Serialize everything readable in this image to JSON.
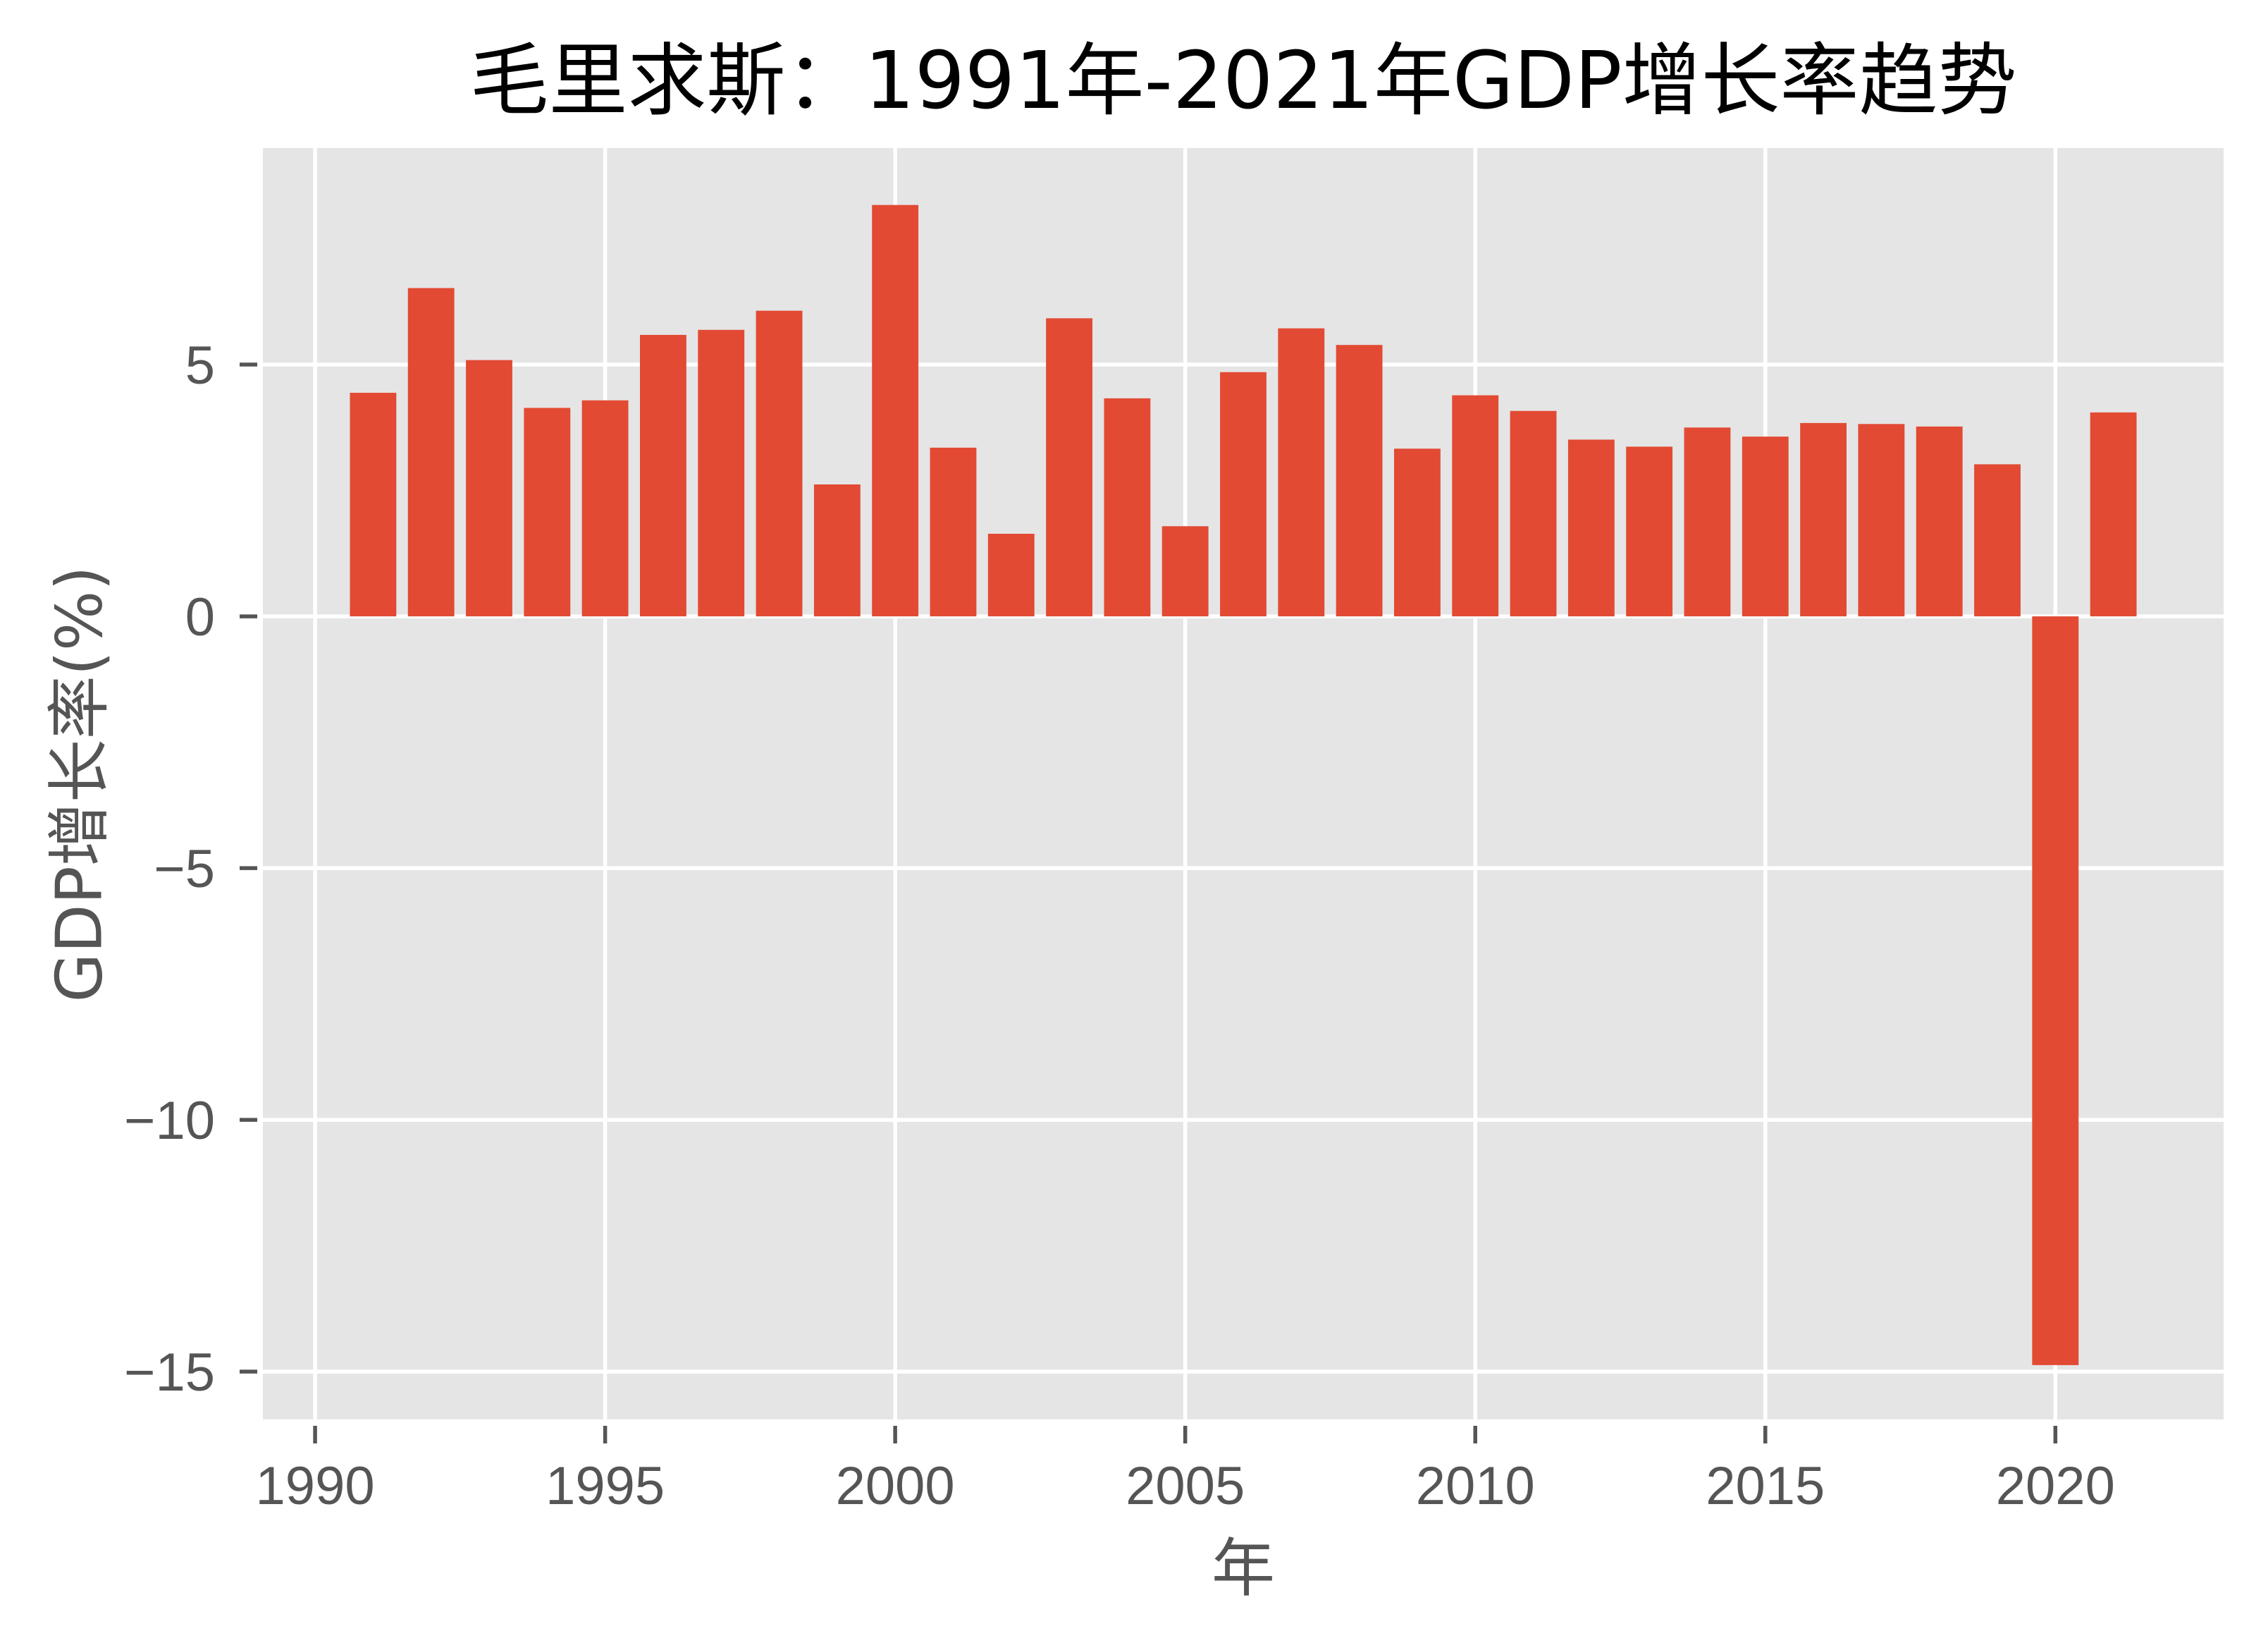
{
  "chart_data": {
    "type": "bar",
    "title": "毛里求斯：1991年-2021年GDP增长率趋势",
    "xlabel": "年",
    "ylabel": "GDP增长率(%)",
    "categories": [
      1991,
      1992,
      1993,
      1994,
      1995,
      1996,
      1997,
      1998,
      1999,
      2000,
      2001,
      2002,
      2003,
      2004,
      2005,
      2006,
      2007,
      2008,
      2009,
      2010,
      2011,
      2012,
      2013,
      2014,
      2015,
      2016,
      2017,
      2018,
      2019,
      2020,
      2021
    ],
    "values": [
      4.44,
      6.52,
      5.09,
      4.14,
      4.29,
      5.59,
      5.69,
      6.07,
      2.62,
      8.17,
      3.35,
      1.64,
      5.92,
      4.33,
      1.79,
      4.85,
      5.72,
      5.39,
      3.33,
      4.39,
      4.08,
      3.51,
      3.37,
      3.75,
      3.57,
      3.84,
      3.82,
      3.77,
      3.02,
      -14.87,
      4.05
    ],
    "series": [
      {
        "name": "GDP增长率(%)",
        "color": "#E24A33"
      }
    ],
    "bar_width": 0.8,
    "xlim": [
      1989.1,
      2022.9
    ],
    "ylim": [
      -15.95,
      9.3
    ],
    "xticks": [
      1990,
      1995,
      2000,
      2005,
      2010,
      2015,
      2020
    ],
    "xtick_labels": [
      "1990",
      "1995",
      "2000",
      "2005",
      "2010",
      "2015",
      "2020"
    ],
    "yticks": [
      5,
      0,
      -5,
      -10,
      -15
    ],
    "ytick_labels": [
      "5",
      "0",
      "−5",
      "−10",
      "−15"
    ],
    "grid": true,
    "legend": "none",
    "colors": {
      "bar": "#E24A33",
      "plot_background": "#E5E5E5",
      "grid": "#FFFFFF",
      "tick": "#555555",
      "tick_label": "#555555",
      "title": "#000000"
    }
  }
}
